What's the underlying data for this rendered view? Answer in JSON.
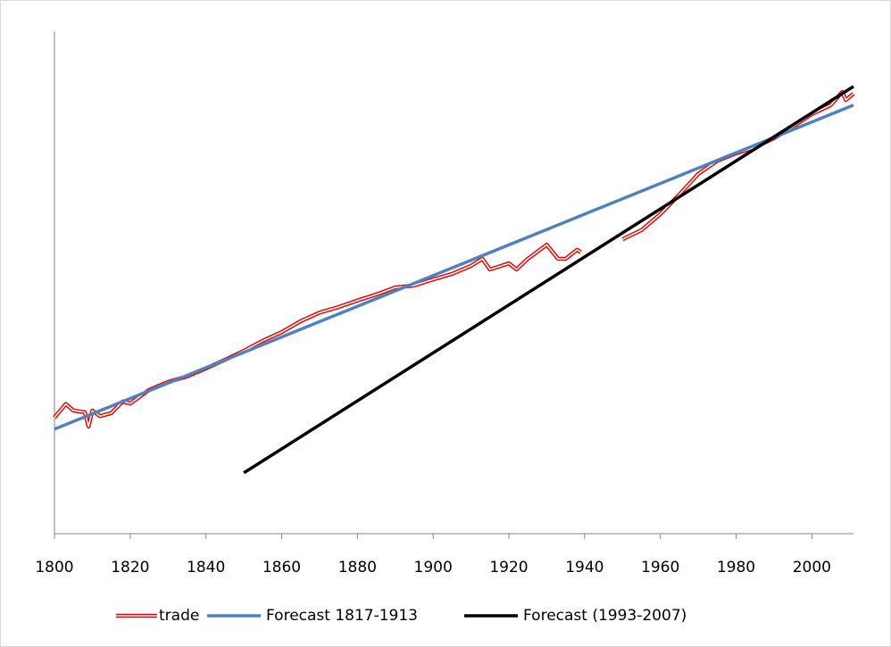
{
  "chart_data": {
    "type": "line",
    "xlim": [
      1800,
      2011
    ],
    "ylim": [
      0,
      100
    ],
    "xticks": [
      1800,
      1820,
      1840,
      1860,
      1880,
      1900,
      1920,
      1940,
      1960,
      1980,
      2000
    ],
    "series": [
      {
        "name": "trade",
        "color": "#e00000",
        "x": [
          1800,
          1803,
          1805,
          1808,
          1809,
          1810,
          1812,
          1815,
          1818,
          1820,
          1825,
          1830,
          1835,
          1840,
          1845,
          1850,
          1855,
          1860,
          1865,
          1870,
          1875,
          1880,
          1885,
          1890,
          1895,
          1900,
          1905,
          1910,
          1913,
          1915,
          1918,
          1920,
          1922,
          1925,
          1930,
          1933,
          1935,
          1938,
          1939,
          1940,
          1950,
          1955,
          1960,
          1965,
          1970,
          1975,
          1980,
          1985,
          1990,
          1995,
          2000,
          2005,
          2008,
          2009,
          2011
        ],
        "values": [
          23.1,
          25.8,
          24.5,
          24.2,
          21.3,
          24.5,
          23.4,
          24.0,
          26.3,
          25.9,
          28.6,
          30.2,
          31.3,
          32.9,
          34.6,
          36.4,
          38.4,
          40.1,
          42.3,
          44.0,
          45.1,
          46.4,
          47.6,
          49.0,
          49.4,
          50.6,
          51.7,
          53.3,
          54.7,
          52.6,
          53.3,
          53.8,
          52.6,
          54.7,
          57.5,
          54.7,
          54.7,
          56.5,
          56.0,
          null,
          58.6,
          60.4,
          63.6,
          67.5,
          71.6,
          74.2,
          75.7,
          76.9,
          78.7,
          81.0,
          83.5,
          85.3,
          87.9,
          86.3,
          87.6
        ]
      },
      {
        "name": "Forecast 1817-1913",
        "color": "#4f81bd",
        "x": [
          1800,
          2011
        ],
        "values": [
          20.8,
          85.3
        ]
      },
      {
        "name": "Forecast (1993-2007)",
        "color": "#000000",
        "x": [
          1850,
          2011
        ],
        "values": [
          12.1,
          89.0
        ]
      }
    ]
  }
}
